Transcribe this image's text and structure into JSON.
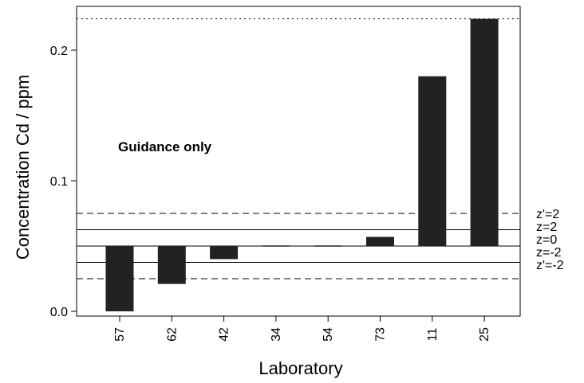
{
  "chart_data": {
    "type": "bar",
    "baseline": 0.05,
    "categories": [
      "57",
      "62",
      "42",
      "34",
      "54",
      "73",
      "11",
      "25"
    ],
    "values": [
      0.0,
      0.021,
      0.04,
      0.0495,
      0.0495,
      0.057,
      0.18,
      0.224
    ],
    "xlabel": "Laboratory",
    "ylabel": "Concentration Cd / ppm",
    "ylim": [
      -0.01,
      0.235
    ],
    "yticks": [
      {
        "value": 0.0,
        "label": "0.0"
      },
      {
        "value": 0.1,
        "label": "0.1"
      },
      {
        "value": 0.2,
        "label": "0.2"
      }
    ],
    "annotation": "Guidance only",
    "reference_lines": [
      {
        "value": 0.075,
        "label": "z'=2",
        "style": "dashed"
      },
      {
        "value": 0.0625,
        "label": "z=2",
        "style": "solid"
      },
      {
        "value": 0.05,
        "label": "z=0",
        "style": "solid"
      },
      {
        "value": 0.0375,
        "label": "z=-2",
        "style": "solid"
      },
      {
        "value": 0.025,
        "label": "z'=-2",
        "style": "dashed"
      },
      {
        "value": 0.224,
        "label": "",
        "style": "dotted"
      }
    ],
    "bar_color": "#222222",
    "grid": false
  }
}
